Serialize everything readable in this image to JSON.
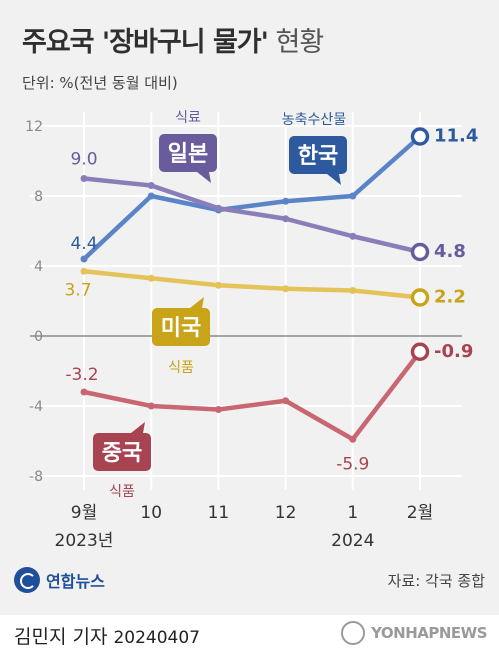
{
  "header": {
    "title_bold": "주요국 '장바구니 물가'",
    "title_thin": " 현황",
    "unit": "단위: %(전년 동월 대비)"
  },
  "footer": {
    "source": "자료: 각국 종합",
    "logo_text": "연합뉴스",
    "author": "김민지 기자",
    "date": "20240407",
    "watermark": "YONHAPNEWS"
  },
  "chart_data": {
    "type": "line",
    "x": [
      "9월",
      "10",
      "11",
      "12",
      "1",
      "2월"
    ],
    "x_sublabels": [
      "2023년",
      "",
      "",
      "",
      "2024",
      ""
    ],
    "ylim": [
      -8,
      12
    ],
    "yticks": [
      12,
      8,
      4,
      0,
      -4,
      -8
    ],
    "grid": true,
    "series": [
      {
        "name": "한국",
        "note": "농축수산물",
        "color": "#5a84c7",
        "badge_color": "#2d5a9e",
        "values": [
          4.4,
          8.0,
          7.2,
          7.7,
          8.0,
          11.4
        ],
        "labels": [
          {
            "i": 0,
            "text": "4.4"
          },
          {
            "i": 5,
            "text": "11.4"
          }
        ]
      },
      {
        "name": "일본",
        "note": "식료",
        "color": "#8b7eb8",
        "badge_color": "#6a5b9c",
        "values": [
          9.0,
          8.6,
          7.3,
          6.7,
          5.7,
          4.8
        ],
        "labels": [
          {
            "i": 0,
            "text": "9.0"
          },
          {
            "i": 5,
            "text": "4.8"
          }
        ]
      },
      {
        "name": "미국",
        "note": "식품",
        "color": "#e3c35a",
        "badge_color": "#c9a318",
        "values": [
          3.7,
          3.3,
          2.9,
          2.7,
          2.6,
          2.2
        ],
        "labels": [
          {
            "i": 0,
            "text": "3.7"
          },
          {
            "i": 5,
            "text": "2.2"
          }
        ]
      },
      {
        "name": "중국",
        "note": "식품",
        "color": "#c86772",
        "badge_color": "#a84452",
        "values": [
          -3.2,
          -4.0,
          -4.2,
          -3.7,
          -5.9,
          -0.9
        ],
        "labels": [
          {
            "i": 0,
            "text": "-3.2"
          },
          {
            "i": 4,
            "text": "-5.9"
          },
          {
            "i": 5,
            "text": "-0.9"
          }
        ]
      }
    ]
  }
}
